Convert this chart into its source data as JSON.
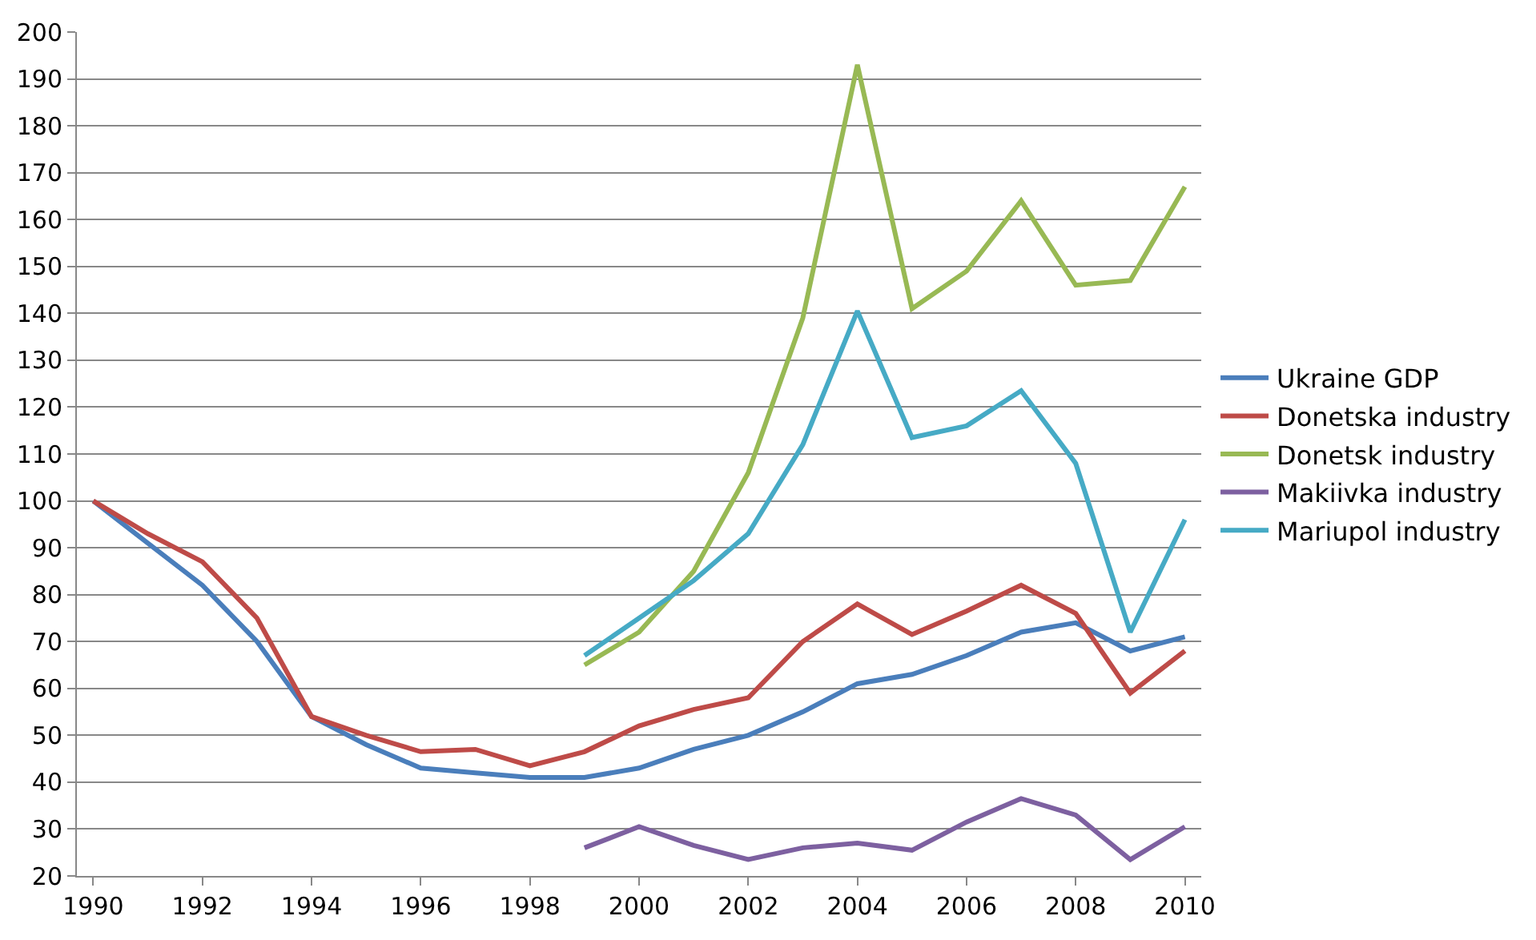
{
  "chart_data": {
    "type": "line",
    "categories": [
      "1990",
      null,
      "1992",
      null,
      "1994",
      null,
      "1996",
      null,
      "1998",
      null,
      "2000",
      null,
      "2002",
      null,
      "2004",
      null,
      "2006",
      null,
      "2008",
      null,
      "2010"
    ],
    "ylim": [
      20,
      200
    ],
    "yticks": [
      20,
      30,
      40,
      50,
      60,
      70,
      80,
      90,
      100,
      110,
      120,
      130,
      140,
      150,
      160,
      170,
      180,
      190,
      200
    ],
    "grid": "y",
    "legend": "right",
    "marker": "none",
    "line_style": "solid",
    "series": [
      {
        "name": "Ukraine GDP",
        "color": "#4a7ebb",
        "values": [
          100,
          91,
          82,
          70,
          54,
          48,
          43,
          42,
          41,
          41,
          43,
          47,
          50,
          55,
          61,
          63,
          67,
          72,
          74,
          68,
          71
        ]
      },
      {
        "name": "Donetska industry",
        "color": "#be4b48",
        "values": [
          100,
          93,
          87,
          75,
          54,
          50,
          46.5,
          47,
          43.5,
          46.5,
          52,
          55.5,
          58,
          70,
          78,
          71.5,
          76.5,
          82,
          76,
          59,
          68
        ]
      },
      {
        "name": "Donetsk industry",
        "color": "#98b954",
        "values": [
          null,
          null,
          null,
          null,
          null,
          null,
          null,
          null,
          null,
          65,
          72,
          85,
          106,
          139,
          193,
          141,
          149,
          164,
          146,
          147,
          167
        ]
      },
      {
        "name": "Makiivka industry",
        "color": "#7d60a0",
        "values": [
          null,
          null,
          null,
          null,
          null,
          null,
          null,
          null,
          null,
          26,
          30.5,
          26.5,
          23.5,
          26,
          27,
          25.5,
          31.5,
          36.5,
          33,
          23.5,
          30.5
        ]
      },
      {
        "name": "Mariupol industry",
        "color": "#46aac5",
        "values": [
          null,
          null,
          null,
          null,
          null,
          null,
          null,
          null,
          null,
          67,
          75,
          83,
          93,
          112,
          140.5,
          113.5,
          116,
          123.5,
          108,
          72,
          96
        ]
      }
    ]
  }
}
